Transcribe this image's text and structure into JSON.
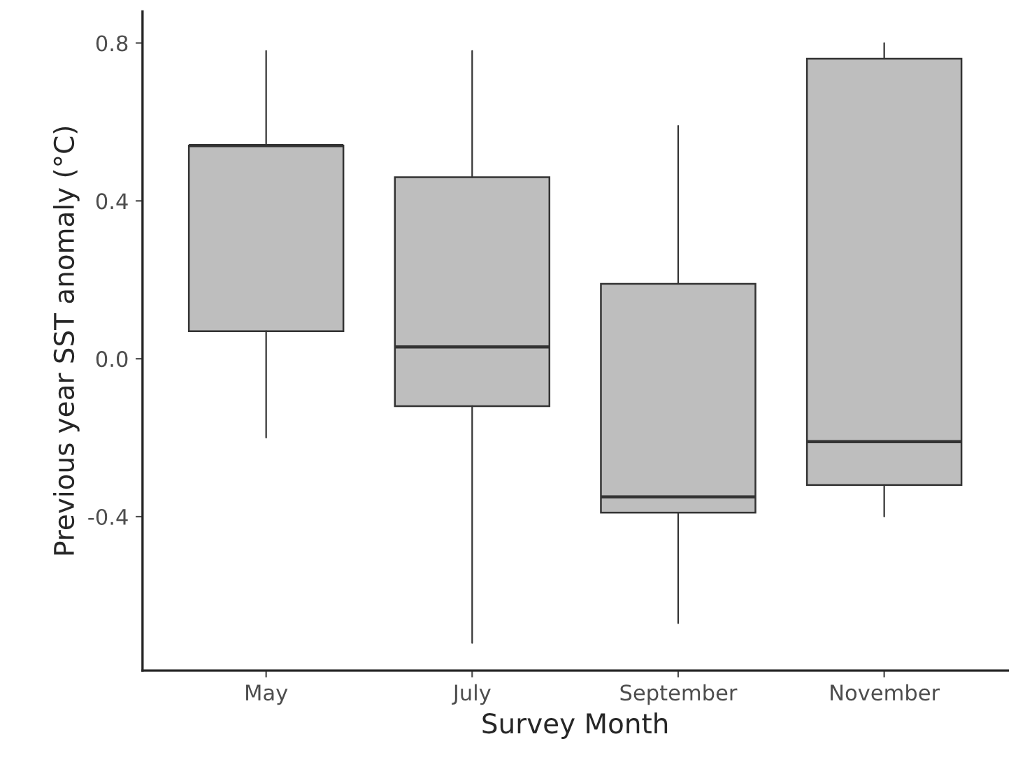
{
  "chart_data": {
    "type": "box",
    "xlabel": "Survey Month",
    "ylabel": "Previous year SST anomaly (°C)",
    "categories": [
      "May",
      "July",
      "September",
      "November"
    ],
    "boxes": [
      {
        "low": -0.2,
        "q1": 0.07,
        "median": 0.54,
        "q3": 0.54,
        "high": 0.78
      },
      {
        "low": -0.72,
        "q1": -0.12,
        "median": 0.03,
        "q3": 0.46,
        "high": 0.78
      },
      {
        "low": -0.67,
        "q1": -0.39,
        "median": -0.35,
        "q3": 0.19,
        "high": 0.59
      },
      {
        "low": -0.4,
        "q1": -0.32,
        "median": -0.21,
        "q3": 0.76,
        "high": 0.8
      }
    ],
    "color": "#bebebe",
    "ylim": [
      -0.79,
      0.88
    ],
    "yticks": [
      -0.4,
      {
        "value": 0,
        "label": "0.0"
      },
      0.4,
      0.8
    ],
    "grid": false
  }
}
